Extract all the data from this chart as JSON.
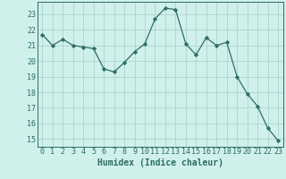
{
  "x": [
    0,
    1,
    2,
    3,
    4,
    5,
    6,
    7,
    8,
    9,
    10,
    11,
    12,
    13,
    14,
    15,
    16,
    17,
    18,
    19,
    20,
    21,
    22,
    23
  ],
  "y": [
    21.7,
    21.0,
    21.4,
    21.0,
    20.9,
    20.8,
    19.5,
    19.3,
    19.9,
    20.6,
    21.1,
    22.7,
    23.4,
    23.3,
    21.1,
    20.4,
    21.5,
    21.0,
    21.2,
    19.0,
    17.9,
    17.1,
    15.7,
    14.9
  ],
  "line_color": "#2e6e65",
  "marker": "D",
  "marker_size": 2.2,
  "bg_color": "#cff0eb",
  "grid_color": "#aed4ce",
  "xlabel": "Humidex (Indice chaleur)",
  "xlim": [
    -0.5,
    23.5
  ],
  "ylim": [
    14.5,
    23.8
  ],
  "yticks": [
    15,
    16,
    17,
    18,
    19,
    20,
    21,
    22,
    23
  ],
  "xticks": [
    0,
    1,
    2,
    3,
    4,
    5,
    6,
    7,
    8,
    9,
    10,
    11,
    12,
    13,
    14,
    15,
    16,
    17,
    18,
    19,
    20,
    21,
    22,
    23
  ],
  "label_fontsize": 7,
  "tick_fontsize": 6,
  "tick_color": "#2e6e65",
  "axis_color": "#2e6e65",
  "line_width": 0.9
}
